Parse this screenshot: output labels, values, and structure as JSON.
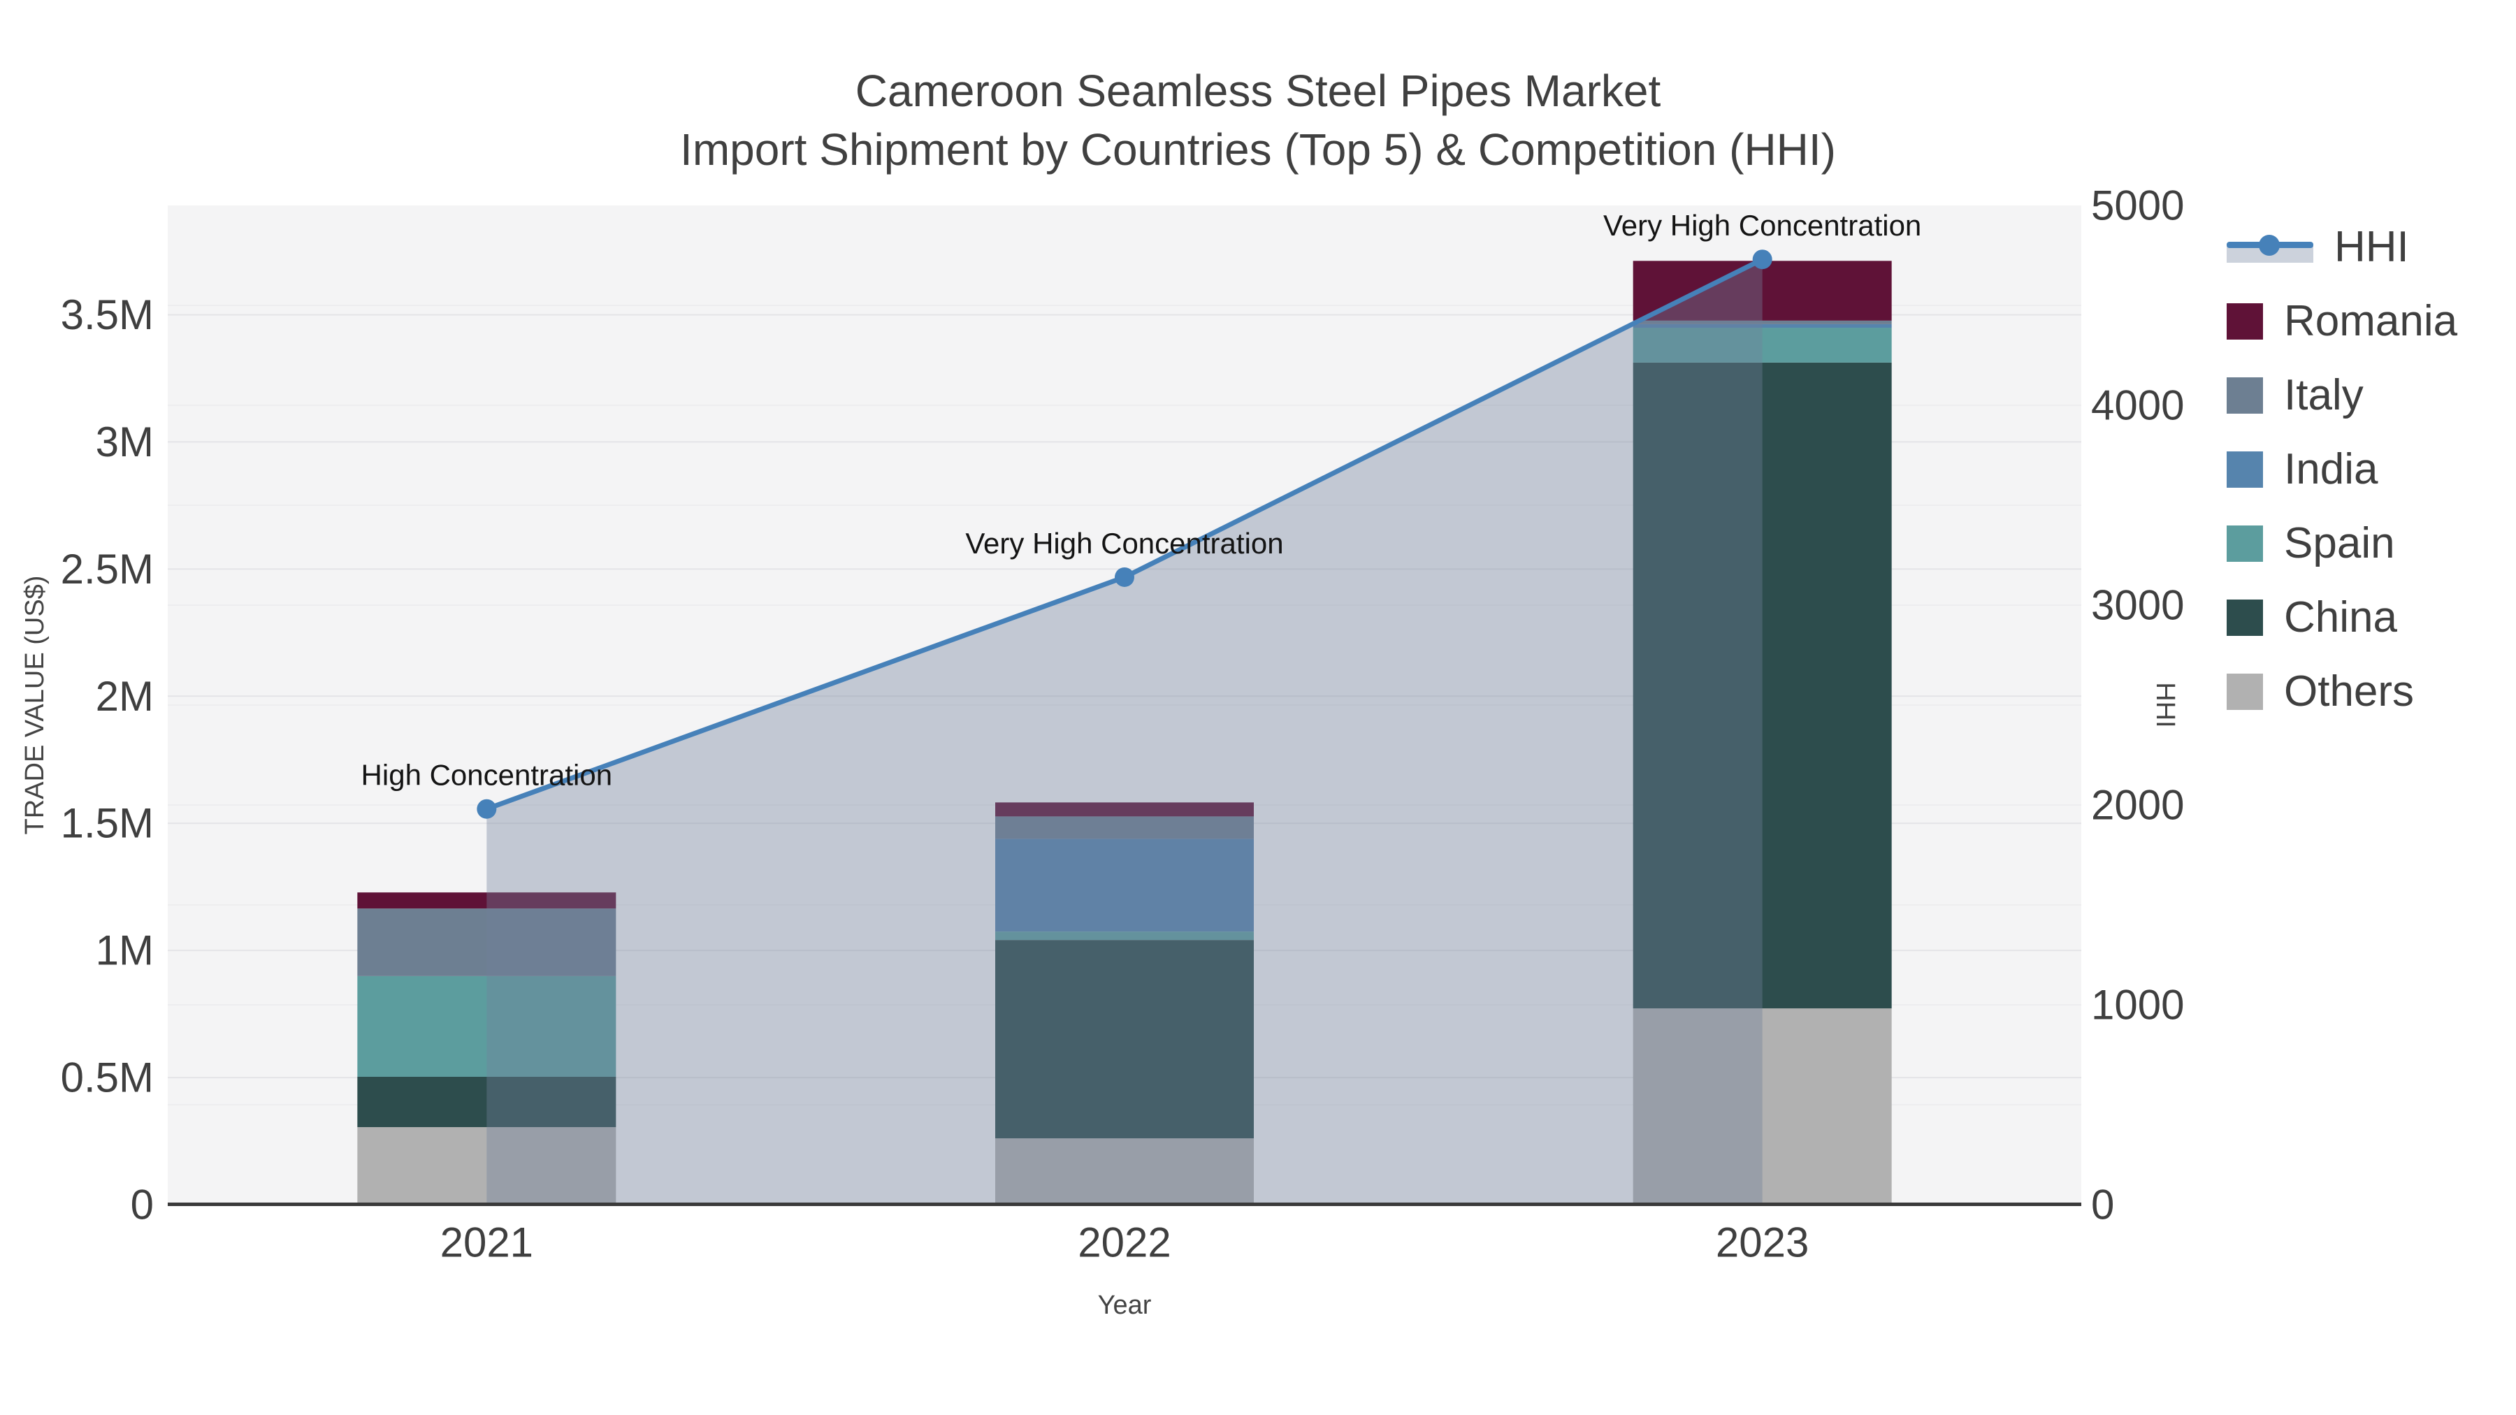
{
  "title": {
    "line1": "Cameroon Seamless Steel Pipes Market",
    "line2": "Import Shipment by Countries (Top 5) & Competition (HHI)"
  },
  "chart_data": {
    "type": "combo: stacked-bar (trade value by country) + line-area (HHI)",
    "categories": [
      "2021",
      "2022",
      "2023"
    ],
    "series": [
      {
        "name": "Romania",
        "type": "bar",
        "color": "#5f1237",
        "values": [
          63000,
          55000,
          235000
        ]
      },
      {
        "name": "Italy",
        "type": "bar",
        "color": "#6d7f92",
        "values": [
          266000,
          88000,
          14000
        ]
      },
      {
        "name": "India",
        "type": "bar",
        "color": "#5684ad",
        "values": [
          0,
          365000,
          14000
        ]
      },
      {
        "name": "Spain",
        "type": "bar",
        "color": "#5c9d9e",
        "values": [
          396000,
          33000,
          137000
        ]
      },
      {
        "name": "China",
        "type": "bar",
        "color": "#2d4d4d",
        "values": [
          198000,
          780000,
          2540000
        ]
      },
      {
        "name": "Others",
        "type": "bar",
        "color": "#b1b1b1",
        "values": [
          305000,
          261000,
          772000
        ]
      }
    ],
    "bar_totals": [
      1228000,
      1582000,
      3712000
    ],
    "hhi": {
      "name": "HHI",
      "type": "line-area",
      "line_color": "#4681b9",
      "area_fill": "rgba(114,130,156,0.38)",
      "values": [
        1980,
        3140,
        4730
      ]
    },
    "annotations": [
      {
        "category": "2021",
        "text": "High Concentration"
      },
      {
        "category": "2022",
        "text": "Very High Concentration"
      },
      {
        "category": "2023",
        "text": "Very High Concentration"
      }
    ],
    "xlabel": "Year",
    "y_left": {
      "title": "TRADE VALUE (US$)",
      "range": [
        0,
        3930000
      ],
      "ticks": [
        {
          "label": "0",
          "value": 0
        },
        {
          "label": "0.5M",
          "value": 500000
        },
        {
          "label": "1M",
          "value": 1000000
        },
        {
          "label": "1.5M",
          "value": 1500000
        },
        {
          "label": "2M",
          "value": 2000000
        },
        {
          "label": "2.5M",
          "value": 2500000
        },
        {
          "label": "3M",
          "value": 3000000
        },
        {
          "label": "3.5M",
          "value": 3500000
        }
      ]
    },
    "y_right": {
      "title": "HHI",
      "range": [
        0,
        5000
      ],
      "ticks": [
        {
          "label": "0",
          "value": 0
        },
        {
          "label": "1000",
          "value": 1000
        },
        {
          "label": "2000",
          "value": 2000
        },
        {
          "label": "3000",
          "value": 3000
        },
        {
          "label": "4000",
          "value": 4000
        },
        {
          "label": "5000",
          "value": 5000
        }
      ]
    },
    "grid": {
      "left_step": 500000,
      "right_step": 500,
      "color_left": "#e4e4e7",
      "color_right": "#ededef"
    },
    "plot_bg": "#f4f4f5",
    "axis_line_color": "#3a3a3a"
  },
  "legend": {
    "items": [
      {
        "key": "hhi",
        "label": "HHI",
        "color": "#4681b9"
      },
      {
        "key": "romania",
        "label": "Romania",
        "color": "#5f1237"
      },
      {
        "key": "italy",
        "label": "Italy",
        "color": "#6d7f92"
      },
      {
        "key": "india",
        "label": "India",
        "color": "#5684ad"
      },
      {
        "key": "spain",
        "label": "Spain",
        "color": "#5c9d9e"
      },
      {
        "key": "china",
        "label": "China",
        "color": "#2d4d4d"
      },
      {
        "key": "others",
        "label": "Others",
        "color": "#b1b1b1"
      }
    ]
  }
}
